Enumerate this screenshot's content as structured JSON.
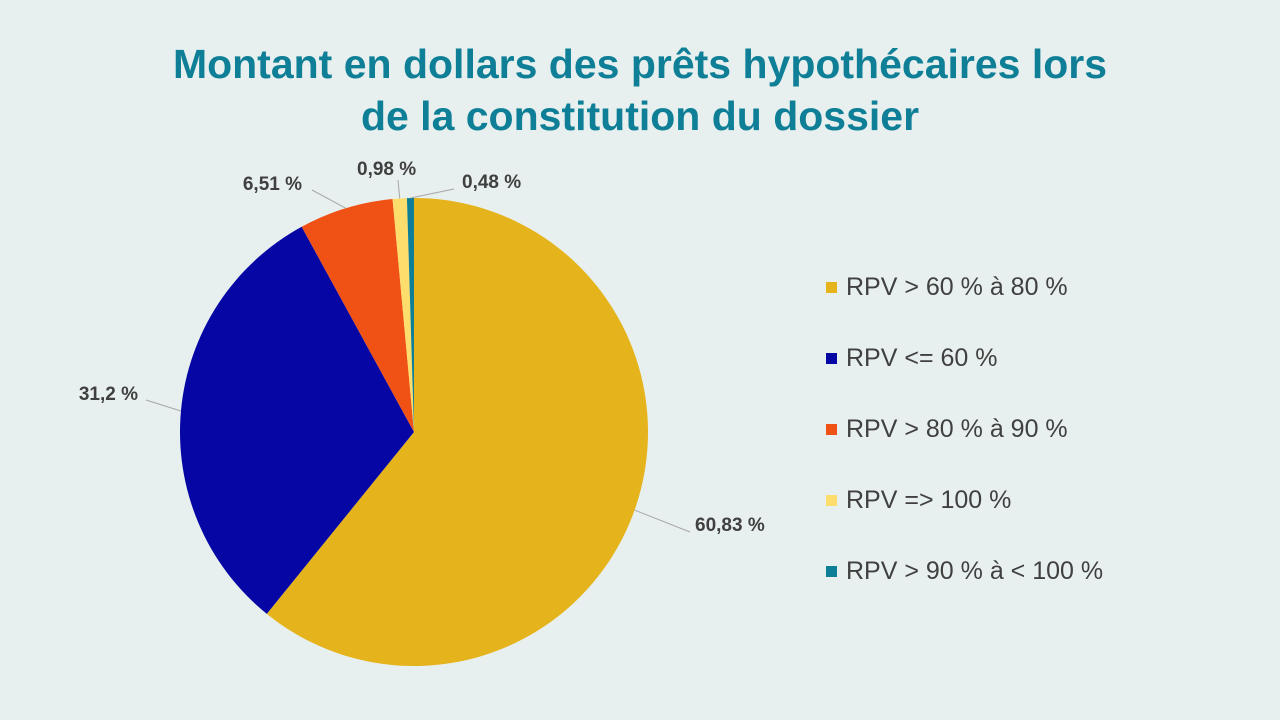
{
  "chart_data": {
    "type": "pie",
    "title_lines": [
      "Montant en dollars des prêts hypothécaires lors",
      "de la constitution du dossier"
    ],
    "slices": [
      {
        "name": "RPV > 60 % à 80 %",
        "value": 60.83,
        "label": "60,83 %",
        "color": "#e5b31b"
      },
      {
        "name": "RPV <= 60 %",
        "value": 31.2,
        "label": "31,2 %",
        "color": "#0606a5"
      },
      {
        "name": "RPV > 80 % à 90 %",
        "value": 6.51,
        "label": "6,51 %",
        "color": "#f05115"
      },
      {
        "name": "RPV => 100 %",
        "value": 0.98,
        "label": "0,98 %",
        "color": "#fddd6b"
      },
      {
        "name": "RPV > 90 % à < 100 %",
        "value": 0.48,
        "label": "0,48 %",
        "color": "#0e7f96"
      }
    ],
    "start_angle": "top",
    "direction": "clockwise",
    "legend_position": "right"
  },
  "colors": {
    "title": "#0e7f96",
    "background": "#e8f0ef",
    "label_text": "#404040",
    "leader_line": "#a6a6a6"
  }
}
